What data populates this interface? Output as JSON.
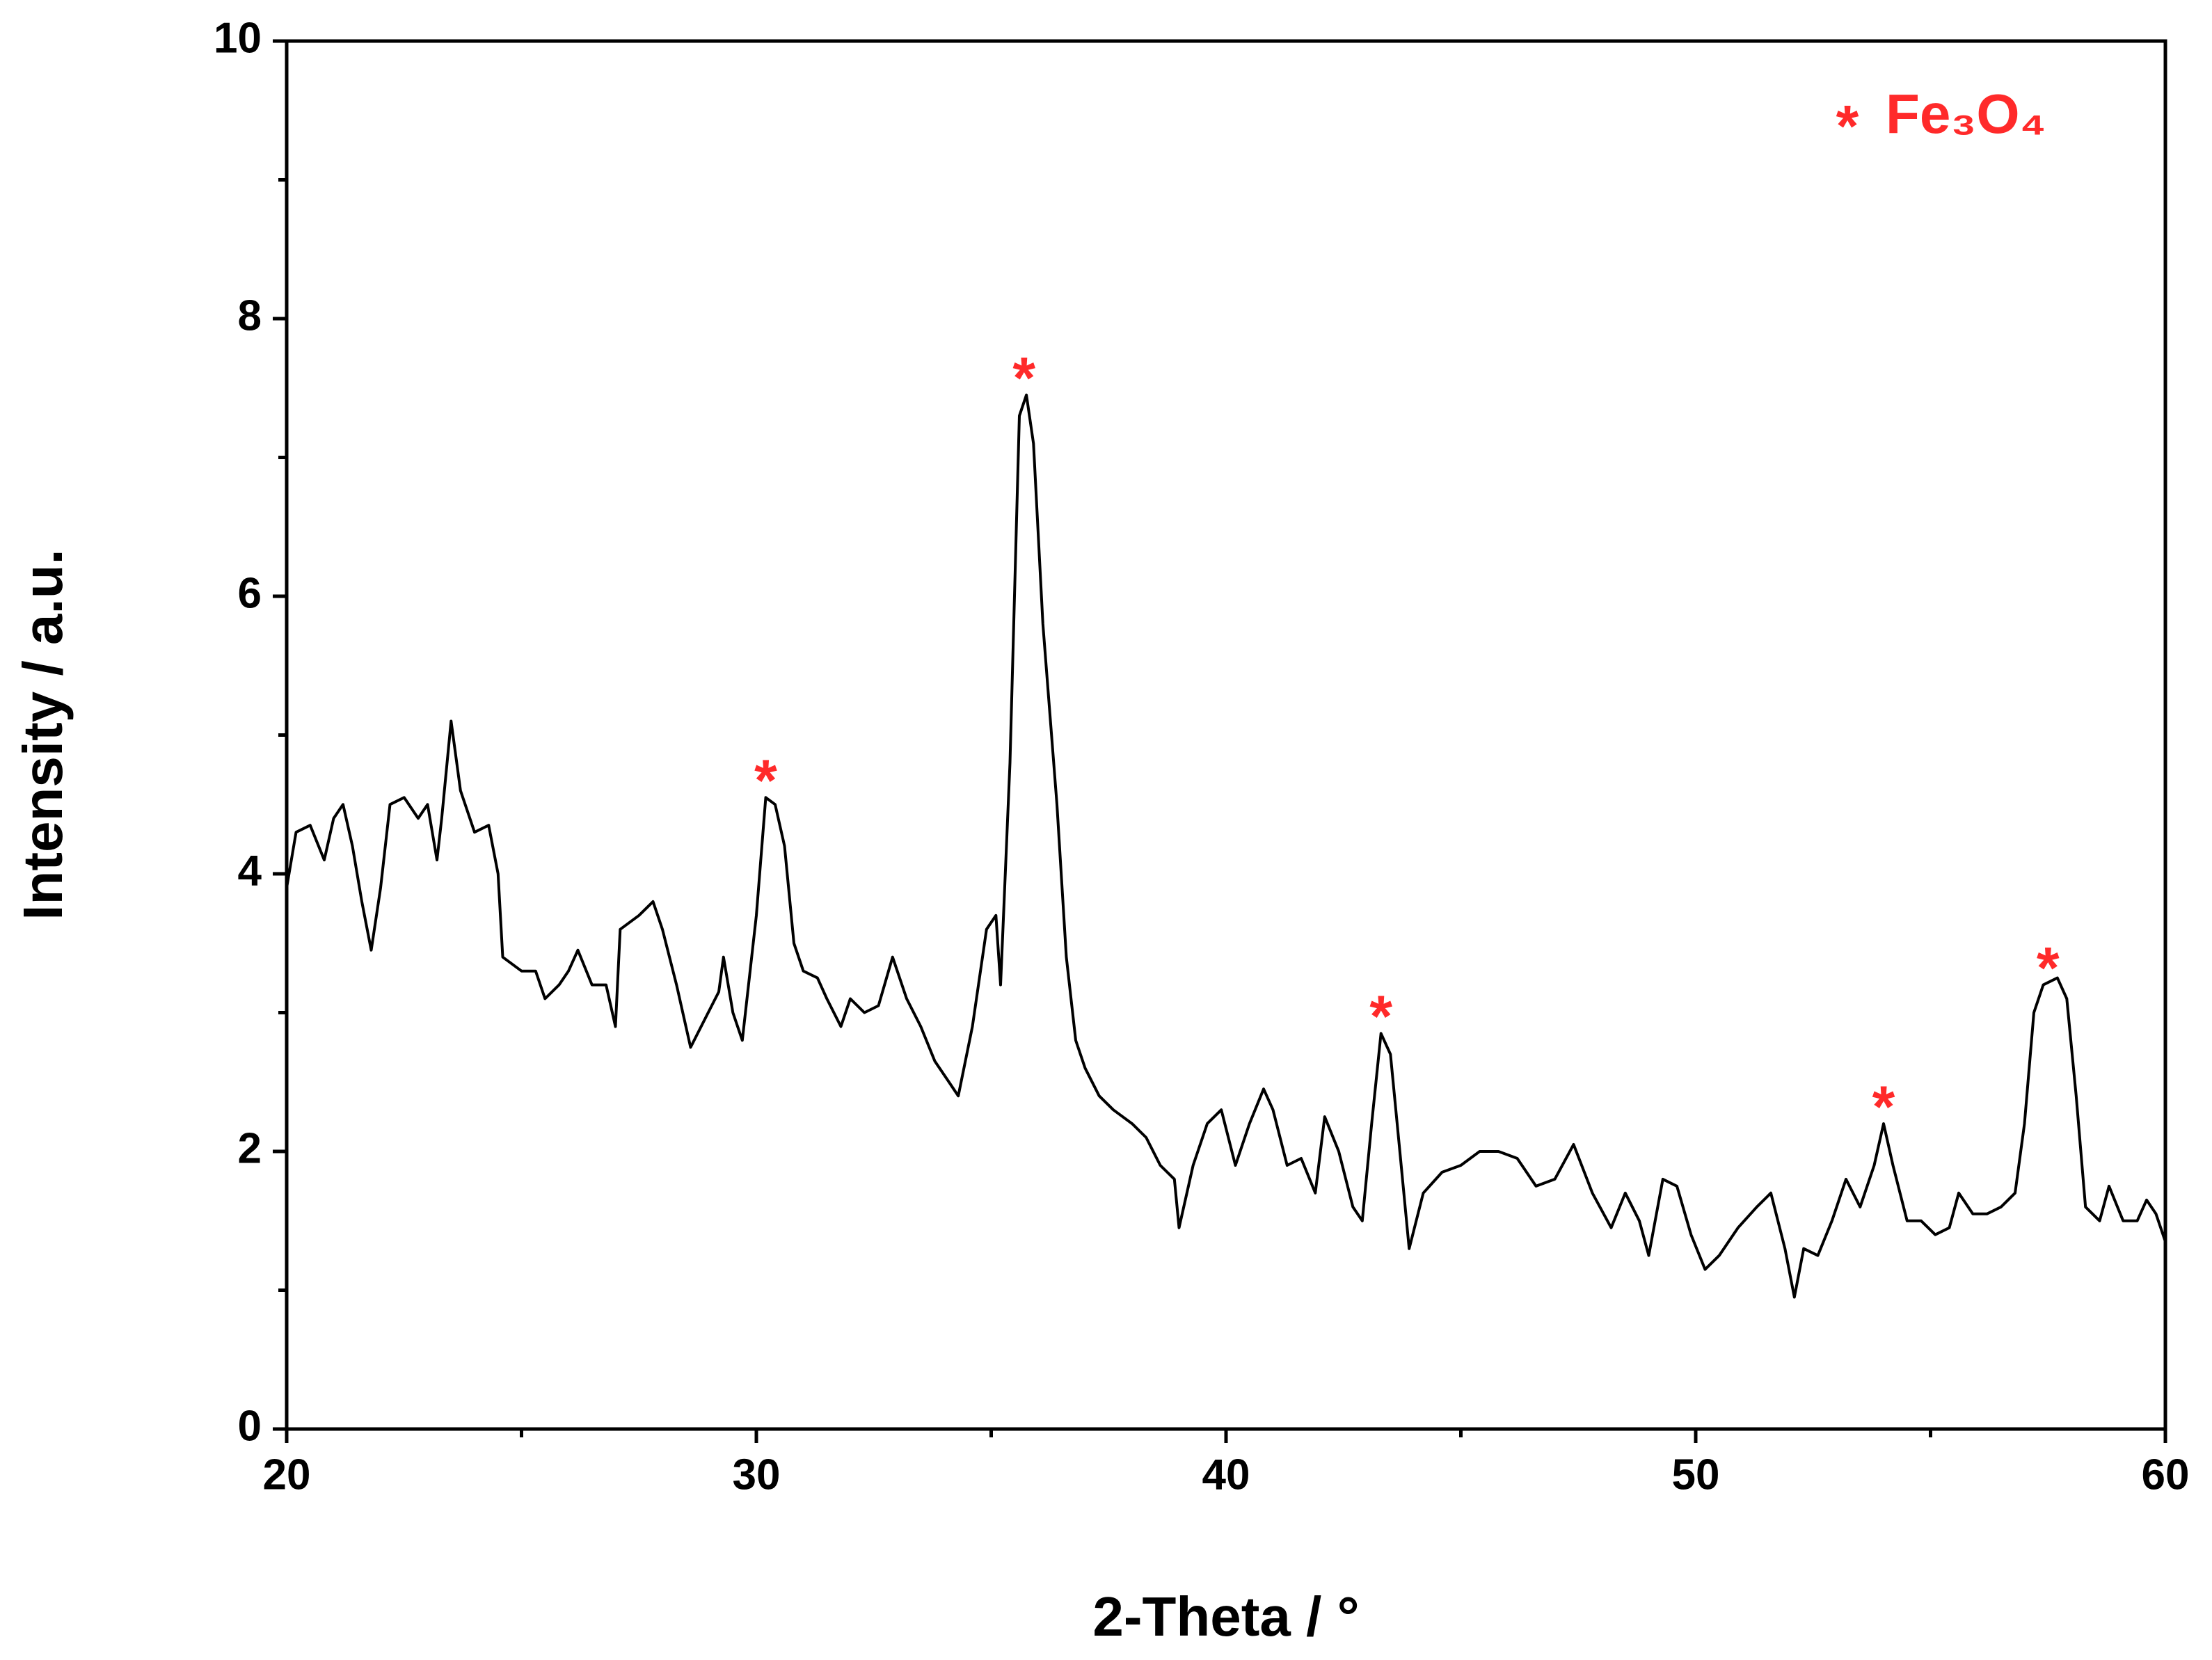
{
  "chart_data": {
    "type": "line",
    "xlabel": "2-Theta / °",
    "ylabel": "Intensity / a.u.",
    "xlim": [
      20,
      60
    ],
    "ylim": [
      0,
      10
    ],
    "xticks": [
      20,
      30,
      40,
      50,
      60
    ],
    "yticks": [
      0,
      2,
      4,
      6,
      8,
      10
    ],
    "xticks_minor": [
      25,
      35,
      45,
      55
    ],
    "yticks_minor": [
      1,
      3,
      5,
      7,
      9
    ],
    "legend": {
      "marker": "*",
      "label": "Fe₃O₄",
      "color": "#ff2a2a"
    },
    "annotations": [
      {
        "text": "*",
        "x": 30.2,
        "y": 4.75
      },
      {
        "text": "*",
        "x": 35.7,
        "y": 7.65
      },
      {
        "text": "*",
        "x": 43.3,
        "y": 3.05
      },
      {
        "text": "*",
        "x": 54.0,
        "y": 2.4
      },
      {
        "text": "*",
        "x": 57.5,
        "y": 3.4
      }
    ],
    "series": [
      {
        "color": "#000000",
        "x": [
          20.0,
          20.2,
          20.5,
          20.8,
          21.0,
          21.2,
          21.4,
          21.6,
          21.8,
          22.0,
          22.2,
          22.5,
          22.8,
          23.0,
          23.2,
          23.3,
          23.5,
          23.7,
          24.0,
          24.3,
          24.5,
          24.6,
          25.0,
          25.3,
          25.5,
          25.8,
          26.0,
          26.2,
          26.5,
          26.8,
          27.0,
          27.1,
          27.5,
          27.8,
          28.0,
          28.3,
          28.6,
          28.9,
          29.2,
          29.3,
          29.5,
          29.7,
          30.0,
          30.2,
          30.4,
          30.6,
          30.8,
          31.0,
          31.3,
          31.5,
          31.8,
          32.0,
          32.3,
          32.6,
          32.9,
          33.2,
          33.5,
          33.8,
          34.1,
          34.3,
          34.6,
          34.9,
          35.1,
          35.2,
          35.4,
          35.6,
          35.75,
          35.9,
          36.1,
          36.4,
          36.6,
          36.8,
          37.0,
          37.3,
          37.6,
          38.0,
          38.3,
          38.6,
          38.9,
          39.0,
          39.3,
          39.6,
          39.9,
          40.2,
          40.5,
          40.8,
          41.0,
          41.3,
          41.6,
          41.9,
          42.1,
          42.4,
          42.7,
          42.9,
          43.1,
          43.3,
          43.5,
          43.7,
          43.9,
          44.2,
          44.6,
          45.0,
          45.4,
          45.8,
          46.2,
          46.6,
          47.0,
          47.4,
          47.8,
          48.2,
          48.5,
          48.8,
          49.0,
          49.3,
          49.6,
          49.9,
          50.2,
          50.5,
          50.9,
          51.3,
          51.6,
          51.9,
          52.1,
          52.3,
          52.6,
          52.9,
          53.2,
          53.5,
          53.8,
          54.0,
          54.2,
          54.5,
          54.8,
          55.1,
          55.4,
          55.6,
          55.9,
          56.2,
          56.5,
          56.8,
          57.0,
          57.2,
          57.4,
          57.7,
          57.9,
          58.1,
          58.3,
          58.6,
          58.8,
          59.1,
          59.4,
          59.6,
          59.8,
          60.0
        ],
        "values": [
          3.9,
          4.3,
          4.35,
          4.1,
          4.4,
          4.5,
          4.2,
          3.8,
          3.45,
          3.9,
          4.5,
          4.55,
          4.4,
          4.5,
          4.1,
          4.4,
          5.1,
          4.6,
          4.3,
          4.35,
          4.0,
          3.4,
          3.3,
          3.3,
          3.1,
          3.2,
          3.3,
          3.45,
          3.2,
          3.2,
          2.9,
          3.6,
          3.7,
          3.8,
          3.6,
          3.2,
          2.75,
          2.95,
          3.15,
          3.4,
          3.0,
          2.8,
          3.7,
          4.55,
          4.5,
          4.2,
          3.5,
          3.3,
          3.25,
          3.1,
          2.9,
          3.1,
          3.0,
          3.05,
          3.4,
          3.1,
          2.9,
          2.65,
          2.5,
          2.4,
          2.9,
          3.6,
          3.7,
          3.2,
          4.8,
          7.3,
          7.45,
          7.1,
          5.8,
          4.5,
          3.4,
          2.8,
          2.6,
          2.4,
          2.3,
          2.2,
          2.1,
          1.9,
          1.8,
          1.45,
          1.9,
          2.2,
          2.3,
          1.9,
          2.2,
          2.45,
          2.3,
          1.9,
          1.95,
          1.7,
          2.25,
          2.0,
          1.6,
          1.5,
          2.2,
          2.85,
          2.7,
          2.0,
          1.3,
          1.7,
          1.85,
          1.9,
          2.0,
          2.0,
          1.95,
          1.75,
          1.8,
          2.05,
          1.7,
          1.45,
          1.7,
          1.5,
          1.25,
          1.8,
          1.75,
          1.4,
          1.15,
          1.25,
          1.45,
          1.6,
          1.7,
          1.3,
          0.95,
          1.3,
          1.25,
          1.5,
          1.8,
          1.6,
          1.9,
          2.2,
          1.9,
          1.5,
          1.5,
          1.4,
          1.45,
          1.7,
          1.55,
          1.55,
          1.6,
          1.7,
          2.2,
          3.0,
          3.2,
          3.25,
          3.1,
          2.4,
          1.6,
          1.5,
          1.75,
          1.5,
          1.5,
          1.65,
          1.55,
          1.35
        ]
      }
    ]
  }
}
